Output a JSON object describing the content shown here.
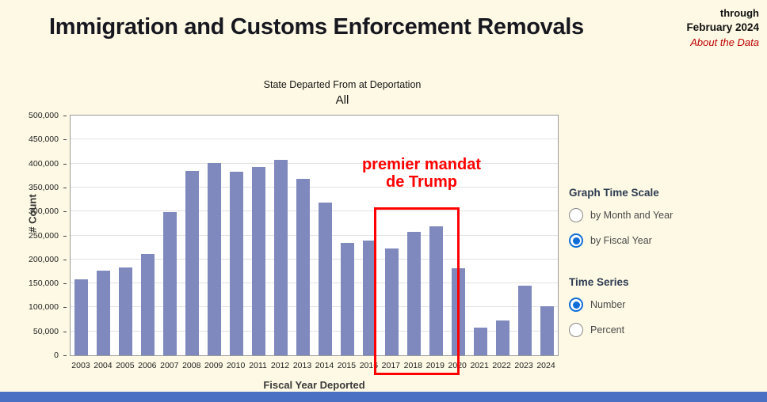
{
  "page": {
    "title": "Immigration and Customs Enforcement Removals",
    "through_line1": "through",
    "through_line2": "February 2024",
    "about_link": "About the Data"
  },
  "chart_data": {
    "type": "bar",
    "title": "State Departed From at Deportation",
    "subtitle": "All",
    "xlabel": "Fiscal Year Deported",
    "ylabel": "# Count",
    "ylim": [
      0,
      500000
    ],
    "ytick_step": 50000,
    "yticks": [
      "0",
      "50,000",
      "100,000",
      "150,000",
      "200,000",
      "250,000",
      "300,000",
      "350,000",
      "400,000",
      "450,000",
      "500,000"
    ],
    "grid": true,
    "legend": "none",
    "bar_color": "#8089BD",
    "categories": [
      "2003",
      "2004",
      "2005",
      "2006",
      "2007",
      "2008",
      "2009",
      "2010",
      "2011",
      "2012",
      "2013",
      "2014",
      "2015",
      "2016",
      "2017",
      "2018",
      "2019",
      "2020",
      "2021",
      "2022",
      "2023",
      "2024"
    ],
    "values": [
      159000,
      176000,
      183000,
      211000,
      299000,
      385000,
      401000,
      383000,
      392000,
      408000,
      368000,
      318000,
      235000,
      239000,
      223000,
      257000,
      269000,
      181000,
      58000,
      73000,
      146000,
      103000
    ],
    "annotation": {
      "text": "premier mandat\nde Trump",
      "color": "#FF0000",
      "highlight_start_year": "2017",
      "highlight_end_year": "2020"
    }
  },
  "controls": {
    "time_scale": {
      "label": "Graph Time Scale",
      "options": [
        {
          "label": "by Month and Year",
          "selected": false
        },
        {
          "label": "by Fiscal Year",
          "selected": true
        }
      ]
    },
    "time_series": {
      "label": "Time Series",
      "options": [
        {
          "label": "Number",
          "selected": true
        },
        {
          "label": "Percent",
          "selected": false
        }
      ]
    }
  },
  "colors": {
    "background": "#FDF9E4",
    "bar": "#8089BD",
    "annotation_red": "#FF0000",
    "link_red": "#C00000",
    "radio_blue": "#0F6FD7",
    "bottom_strip_blue": "#4A70C4"
  }
}
